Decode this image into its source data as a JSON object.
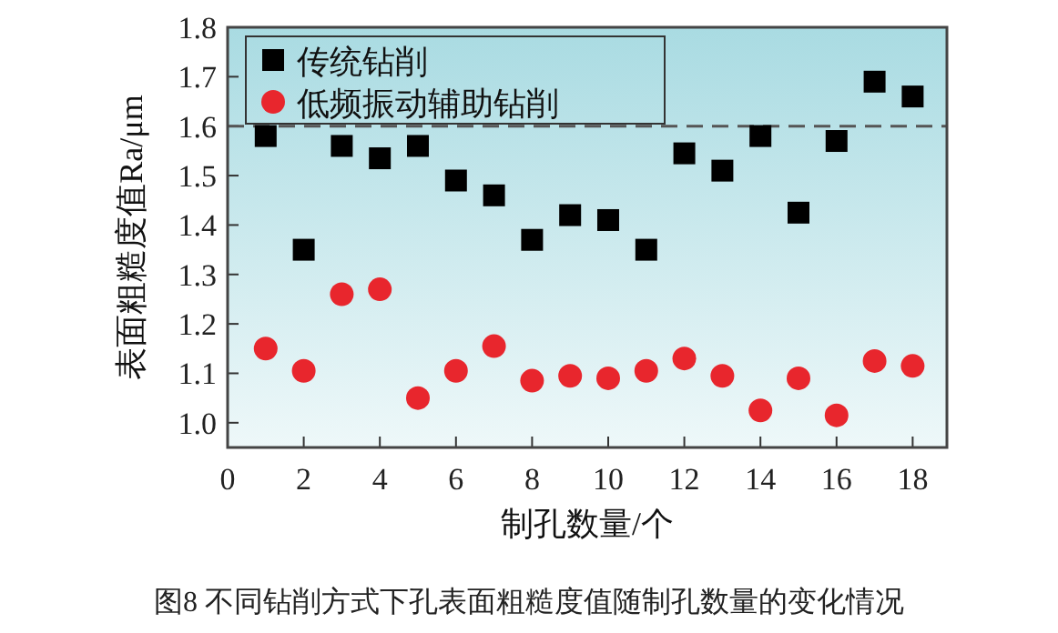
{
  "chart_data": {
    "type": "scatter",
    "xlabel": "制孔数量/个",
    "ylabel": "表面粗糙度值Ra/μm",
    "x": [
      1,
      2,
      3,
      4,
      5,
      6,
      7,
      8,
      9,
      10,
      11,
      12,
      13,
      14,
      15,
      16,
      17,
      18
    ],
    "series": [
      {
        "name": "传统钻削",
        "color": "#000000",
        "marker": "square",
        "values": [
          1.58,
          1.35,
          1.56,
          1.535,
          1.56,
          1.49,
          1.46,
          1.37,
          1.42,
          1.41,
          1.35,
          1.545,
          1.51,
          1.58,
          1.425,
          1.57,
          1.69,
          1.66
        ]
      },
      {
        "name": "低频振动辅助钻削",
        "color": "#e8262d",
        "marker": "circle",
        "values": [
          1.15,
          1.105,
          1.26,
          1.27,
          1.05,
          1.105,
          1.155,
          1.085,
          1.095,
          1.09,
          1.105,
          1.13,
          1.095,
          1.025,
          1.09,
          1.015,
          1.125,
          1.115
        ]
      }
    ],
    "xlim": [
      0,
      18.9
    ],
    "xticks": [
      0,
      2,
      4,
      6,
      8,
      10,
      12,
      14,
      16,
      18
    ],
    "ylim": [
      0.95,
      1.8
    ],
    "yticks": [
      {
        "value": 1.0,
        "label": "1.0"
      },
      {
        "value": 1.1,
        "label": "1.1"
      },
      {
        "value": 1.2,
        "label": "1.2"
      },
      {
        "value": 1.3,
        "label": "1.3"
      },
      {
        "value": 1.4,
        "label": "1.4"
      },
      {
        "value": 1.5,
        "label": "1.5"
      },
      {
        "value": 1.6,
        "label": "1.6"
      },
      {
        "value": 1.7,
        "label": "1.7"
      },
      {
        "value": 1.8,
        "label": "1.8"
      }
    ],
    "ref_lines": [
      {
        "axis": "y",
        "value": 1.6,
        "color": "#555555",
        "line_style": "dashed"
      }
    ],
    "legend": "top left",
    "annotations": [
      "图8  不同钻削方式下孔表面粗糙度值随制孔数量的变化情况"
    ]
  }
}
